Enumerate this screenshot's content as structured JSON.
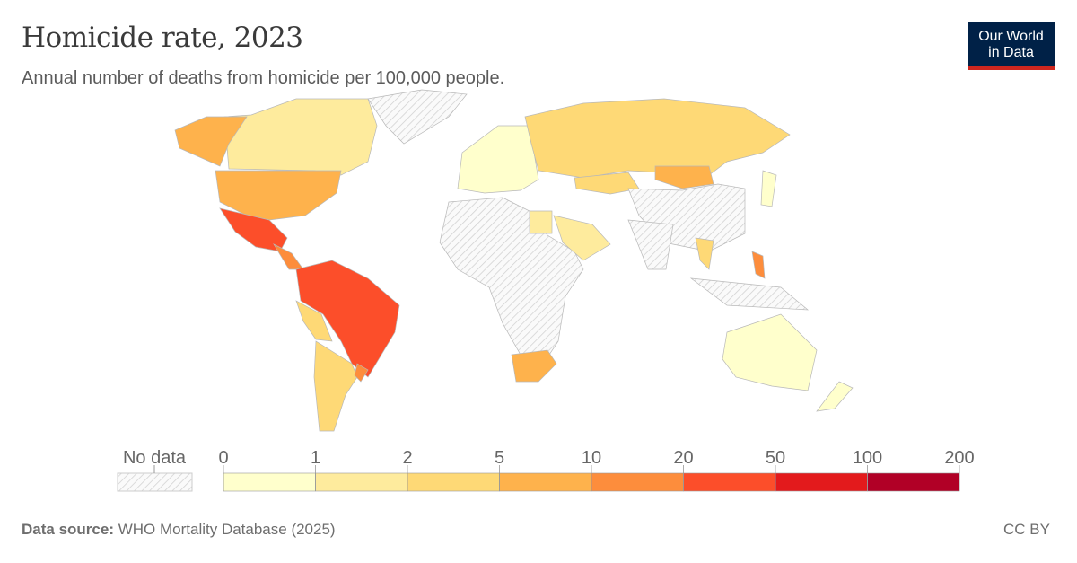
{
  "header": {
    "title": "Homicide rate, 2023",
    "subtitle": "Annual number of deaths from homicide per 100,000 people."
  },
  "logo": {
    "line1": "Our World",
    "line2": "in Data"
  },
  "footer": {
    "source_label": "Data source:",
    "source_text": "WHO Mortality Database (2025)",
    "license": "CC BY"
  },
  "chart_data": {
    "type": "choropleth",
    "title": "Homicide rate, 2023",
    "legend": {
      "no_data_label": "No data",
      "no_data_pattern": "hatched-gray",
      "ticks": [
        "0",
        "1",
        "2",
        "5",
        "10",
        "20",
        "50",
        "100",
        "200"
      ],
      "bins": [
        {
          "range": "0-1",
          "color": "#ffffcc"
        },
        {
          "range": "1-2",
          "color": "#feeb9d"
        },
        {
          "range": "2-5",
          "color": "#fed976"
        },
        {
          "range": "5-10",
          "color": "#feb24c"
        },
        {
          "range": "10-20",
          "color": "#fd8d3c"
        },
        {
          "range": "20-50",
          "color": "#fc4e2a"
        },
        {
          "range": "50-100",
          "color": "#e31a1c"
        },
        {
          "range": "100-200",
          "color": "#b10026"
        }
      ]
    },
    "regions": [
      {
        "region": "Canada",
        "bin": "1-2"
      },
      {
        "region": "Alaska (USA)",
        "bin": "5-10"
      },
      {
        "region": "Greenland",
        "bin": "no data"
      },
      {
        "region": "United States",
        "bin": "5-10"
      },
      {
        "region": "Mexico",
        "bin": "20-50"
      },
      {
        "region": "Central America",
        "bin": "10-20"
      },
      {
        "region": "Colombia / Venezuela / Brazil",
        "bin": "20-50"
      },
      {
        "region": "Peru",
        "bin": "2-5"
      },
      {
        "region": "Argentina / Chile",
        "bin": "2-5"
      },
      {
        "region": "Uruguay",
        "bin": "10-20"
      },
      {
        "region": "Europe",
        "bin": "0-1"
      },
      {
        "region": "Russia",
        "bin": "2-5"
      },
      {
        "region": "Kazakhstan",
        "bin": "2-5"
      },
      {
        "region": "Mongolia",
        "bin": "5-10"
      },
      {
        "region": "China",
        "bin": "no data"
      },
      {
        "region": "Africa",
        "bin": "no data"
      },
      {
        "region": "Egypt",
        "bin": "1-2"
      },
      {
        "region": "Saudi Arabia",
        "bin": "1-2"
      },
      {
        "region": "South Africa",
        "bin": "5-10"
      },
      {
        "region": "India",
        "bin": "no data"
      },
      {
        "region": "Philippines",
        "bin": "10-20"
      },
      {
        "region": "Thailand",
        "bin": "2-5"
      },
      {
        "region": "Indonesia",
        "bin": "no data"
      },
      {
        "region": "Japan",
        "bin": "0-1"
      },
      {
        "region": "Australia",
        "bin": "0-1"
      },
      {
        "region": "New Zealand",
        "bin": "0-1"
      }
    ]
  }
}
